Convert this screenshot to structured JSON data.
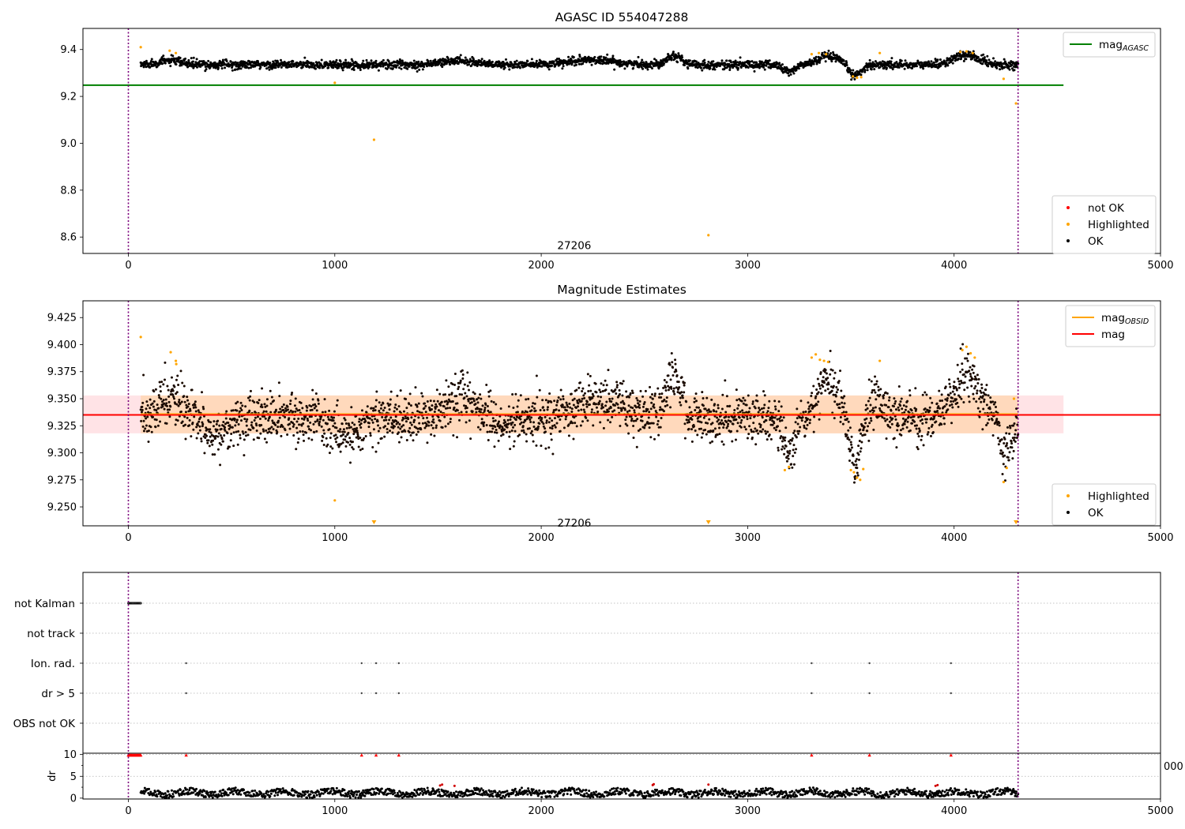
{
  "chart_data": [
    {
      "id": "agasc",
      "type": "scatter",
      "title": "AGASC ID 554047288",
      "xlim": [
        -220,
        5000
      ],
      "ylim": [
        8.53,
        9.49
      ],
      "x_ticks": [
        0,
        1000,
        2000,
        3000,
        4000,
        5000
      ],
      "y_ticks": [
        8.6,
        8.8,
        9.0,
        9.2,
        9.4
      ],
      "y_tick_labels": [
        "8.6",
        "8.8",
        "9.0",
        "9.2",
        "9.4"
      ],
      "annotation": {
        "text": "27206",
        "x": 2160,
        "y": 8.565
      },
      "vertical_lines": [
        0,
        4310
      ],
      "reference_line": {
        "name": "mag_AGASC",
        "label": "mag",
        "subscript": "AGASC",
        "y": 9.248,
        "x_range": [
          -220,
          4530
        ],
        "color": "#008000"
      },
      "legend_top": [
        {
          "label": "mag",
          "sub": "AGASC",
          "color": "#008000",
          "kind": "line"
        }
      ],
      "legend_bottom": [
        {
          "label": "not OK",
          "color": "#ff0000",
          "kind": "dot"
        },
        {
          "label": "Highlighted",
          "color": "#ffa500",
          "kind": "dot"
        },
        {
          "label": "OK",
          "color": "#000000",
          "kind": "dot"
        }
      ],
      "highlighted_points": [
        [
          60,
          9.41
        ],
        [
          200,
          9.395
        ],
        [
          230,
          9.385
        ],
        [
          1000,
          9.258
        ],
        [
          1190,
          9.015
        ],
        [
          2810,
          8.608
        ],
        [
          4300,
          9.17
        ],
        [
          4240,
          9.275
        ],
        [
          3640,
          9.385
        ],
        [
          3310,
          9.38
        ],
        [
          3345,
          9.385
        ],
        [
          3380,
          9.38
        ],
        [
          3510,
          9.285
        ],
        [
          3530,
          9.28
        ],
        [
          3550,
          9.282
        ],
        [
          4030,
          9.39
        ],
        [
          4060,
          9.392
        ],
        [
          4090,
          9.385
        ]
      ],
      "ok_series": {
        "x_range": [
          60,
          4310
        ],
        "n": 2600,
        "baseline": 9.335,
        "features": [
          [
            2640,
            9.375,
            50
          ],
          [
            3390,
            9.37,
            70
          ],
          [
            3520,
            9.288,
            40
          ],
          [
            3200,
            9.305,
            40
          ],
          [
            4060,
            9.375,
            90
          ],
          [
            1600,
            9.352,
            120
          ],
          [
            2250,
            9.355,
            150
          ],
          [
            200,
            9.352,
            80
          ]
        ],
        "noise": 0.009
      }
    },
    {
      "id": "mag",
      "type": "scatter",
      "title": "Magnitude Estimates",
      "xlim": [
        -220,
        5000
      ],
      "ylim": [
        9.2325,
        9.4405
      ],
      "x_ticks": [
        0,
        1000,
        2000,
        3000,
        4000,
        5000
      ],
      "y_ticks": [
        9.25,
        9.275,
        9.3,
        9.325,
        9.35,
        9.375,
        9.4,
        9.425
      ],
      "y_tick_labels": [
        "9.250",
        "9.275",
        "9.300",
        "9.325",
        "9.350",
        "9.375",
        "9.400",
        "9.425"
      ],
      "annotation": {
        "text": "27206",
        "x": 2160,
        "y": 9.2355
      },
      "vertical_lines": [
        0,
        4310
      ],
      "mean_line": {
        "y": 9.335,
        "color": "#ff0000"
      },
      "band_full": {
        "y0": 9.318,
        "y1": 9.353,
        "x_range": [
          -220,
          4530
        ],
        "color": "#ffc0c8"
      },
      "band_obsid": {
        "y0": 9.318,
        "y1": 9.353,
        "x_range": [
          60,
          4310
        ],
        "color": "#ffd2a0"
      },
      "legend_top": [
        {
          "label": "mag",
          "sub": "OBSID",
          "color": "#ffa500",
          "kind": "line"
        },
        {
          "label": "mag",
          "sub": "",
          "color": "#ff0000",
          "kind": "line"
        }
      ],
      "legend_bottom": [
        {
          "label": "Highlighted",
          "color": "#ffa500",
          "kind": "dot"
        },
        {
          "label": "OK",
          "color": "#000000",
          "kind": "dot"
        }
      ],
      "highlighted_points": [
        [
          60,
          9.407
        ],
        [
          205,
          9.393
        ],
        [
          230,
          9.385
        ],
        [
          232,
          9.382
        ],
        [
          1000,
          9.256
        ],
        [
          3180,
          9.284
        ],
        [
          3200,
          9.287
        ],
        [
          3310,
          9.388
        ],
        [
          3330,
          9.391
        ],
        [
          3350,
          9.386
        ],
        [
          3370,
          9.385
        ],
        [
          3390,
          9.384
        ],
        [
          3500,
          9.284
        ],
        [
          3515,
          9.282
        ],
        [
          3530,
          9.277
        ],
        [
          3545,
          9.275
        ],
        [
          3560,
          9.285
        ],
        [
          3640,
          9.385
        ],
        [
          4040,
          9.395
        ],
        [
          4060,
          9.398
        ],
        [
          4080,
          9.392
        ],
        [
          4100,
          9.388
        ],
        [
          4240,
          9.273
        ],
        [
          4255,
          9.286
        ],
        [
          4290,
          9.35
        ]
      ],
      "offscale_markers": [
        1190,
        2810,
        4300
      ],
      "ok_series": {
        "x_range": [
          60,
          4310
        ],
        "n": 2600,
        "baseline": 9.332,
        "features": [
          [
            2640,
            9.372,
            50
          ],
          [
            3390,
            9.368,
            70
          ],
          [
            3520,
            9.29,
            40
          ],
          [
            3200,
            9.3,
            40
          ],
          [
            4060,
            9.372,
            90
          ],
          [
            1620,
            9.347,
            130
          ],
          [
            2300,
            9.35,
            160
          ],
          [
            200,
            9.35,
            80
          ],
          [
            420,
            9.318,
            90
          ],
          [
            1050,
            9.316,
            80
          ],
          [
            1800,
            9.32,
            60
          ],
          [
            4250,
            9.3,
            40
          ],
          [
            3620,
            9.345,
            60
          ]
        ],
        "noise": 0.011
      }
    },
    {
      "id": "flags",
      "type": "scatter",
      "title": "",
      "xlim": [
        -220,
        5000
      ],
      "categories": [
        "not Kalman",
        "not track",
        "Ion. rad.",
        "dr > 5",
        "OBS not OK"
      ],
      "vertical_lines": [
        0,
        4310
      ],
      "not_kalman_x_range": [
        0,
        60
      ],
      "event_x": [
        280,
        1130,
        1200,
        1310,
        3310,
        3590,
        3985
      ]
    },
    {
      "id": "dr",
      "type": "scatter",
      "title": "",
      "ylabel": "dr",
      "xlim": [
        -220,
        5000
      ],
      "ylim": [
        -0.2,
        10.3
      ],
      "x_ticks": [
        0,
        1000,
        2000,
        3000,
        4000,
        5000
      ],
      "y_ticks": [
        0,
        5,
        10
      ],
      "y_tick_labels": [
        "0",
        "5",
        "10"
      ],
      "clipped_label": "000",
      "vertical_lines": [
        0,
        4310
      ],
      "flag_markers_x": [
        280,
        1130,
        1200,
        1310,
        3310,
        3590,
        3985
      ],
      "red_points": [
        [
          1510,
          2.9
        ],
        [
          1520,
          3.1
        ],
        [
          1580,
          2.8
        ],
        [
          2540,
          3.0
        ],
        [
          2545,
          3.2
        ],
        [
          2810,
          3.1
        ],
        [
          3910,
          2.8
        ],
        [
          3920,
          3.0
        ]
      ],
      "ok_series": {
        "x_range": [
          60,
          4310
        ],
        "n": 1500,
        "mean": 1.2,
        "spread": 0.8
      }
    }
  ]
}
